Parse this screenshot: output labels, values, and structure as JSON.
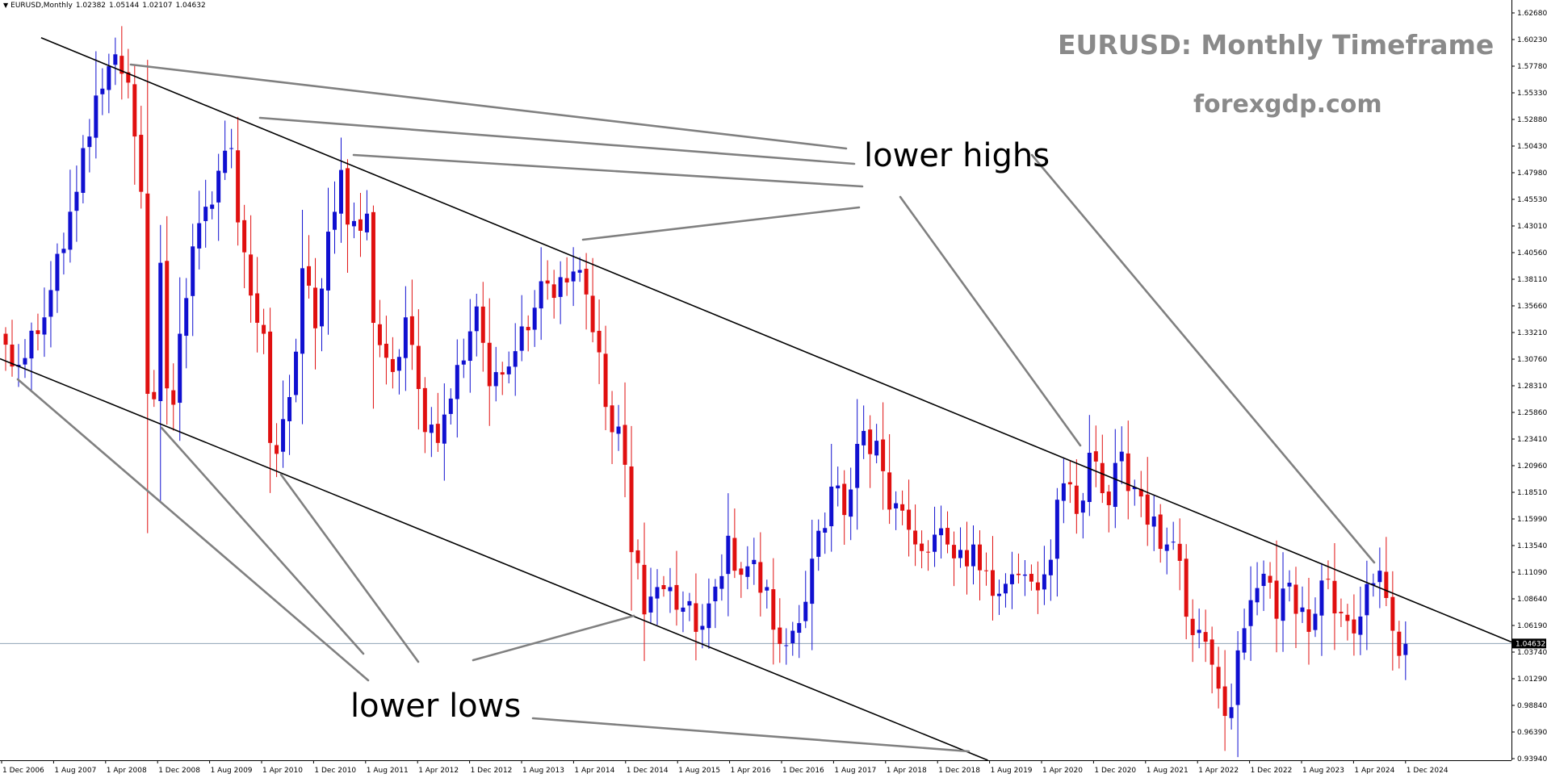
{
  "header": {
    "symbol": "EURUSD,Monthly",
    "open": "1.02382",
    "high": "1.05144",
    "low": "1.02107",
    "close": "1.04632"
  },
  "title": "EURUSD: Monthly Timeframe",
  "website": "forexgdp.com",
  "annotations": {
    "upper": "lower highs",
    "lower": "lower lows"
  },
  "colors": {
    "bull": "#1010d0",
    "bear": "#e01010",
    "trendline": "#000000",
    "pointer": "#808080",
    "price_line": "#8fa3b5"
  },
  "chart_data": {
    "type": "candlestick",
    "symbol": "EURUSD",
    "timeframe": "Monthly",
    "current_price": "1.04632",
    "y_ticks": [
      "1.62680",
      "1.60230",
      "1.57780",
      "1.55330",
      "1.52880",
      "1.50430",
      "1.47980",
      "1.45530",
      "1.43010",
      "1.40560",
      "1.38110",
      "1.35660",
      "1.33210",
      "1.30760",
      "1.28310",
      "1.25860",
      "1.23410",
      "1.20960",
      "1.18510",
      "1.15990",
      "1.13540",
      "1.11090",
      "1.08640",
      "1.06190",
      "1.03740",
      "1.01290",
      "0.98840",
      "0.96390",
      "0.93940"
    ],
    "x_ticks": [
      "1 Dec 2006",
      "1 Aug 2007",
      "1 Apr 2008",
      "1 Dec 2008",
      "1 Aug 2009",
      "1 Apr 2010",
      "1 Dec 2010",
      "1 Aug 2011",
      "1 Apr 2012",
      "1 Dec 2012",
      "1 Aug 2013",
      "1 Apr 2014",
      "1 Dec 2014",
      "1 Aug 2015",
      "1 Apr 2016",
      "1 Dec 2016",
      "1 Aug 2017",
      "1 Apr 2018",
      "1 Dec 2018",
      "1 Aug 2019",
      "1 Apr 2020",
      "1 Dec 2020",
      "1 Aug 2021",
      "1 Apr 2022",
      "1 Dec 2022",
      "1 Aug 2023",
      "1 Apr 2024",
      "1 Dec 2024"
    ],
    "start_month": "Dec 2006",
    "anchors": [
      [
        "Dec 2006",
        1.32
      ],
      [
        "Jan 2007",
        1.3
      ],
      [
        "Jun 2007",
        1.345
      ],
      [
        "Jul 2007",
        1.37
      ],
      [
        "Nov 2007",
        1.46
      ],
      [
        "Dec 2007",
        1.5
      ],
      [
        "Apr 2008",
        1.575
      ],
      [
        "Jul 2008",
        1.56
      ],
      [
        "Sep 2008",
        1.46
      ],
      [
        "Oct 2008",
        1.275
      ],
      [
        "Nov 2008",
        1.27
      ],
      [
        "Dec 2008",
        1.395
      ],
      [
        "Jan 2009",
        1.28
      ],
      [
        "Feb 2009",
        1.265
      ],
      [
        "Mar 2009",
        1.33
      ],
      [
        "May 2009",
        1.41
      ],
      [
        "Nov 2009",
        1.5
      ],
      [
        "Dec 2009",
        1.432
      ],
      [
        "Feb 2010",
        1.365
      ],
      [
        "Apr 2010",
        1.33
      ],
      [
        "May 2010",
        1.23
      ],
      [
        "Jun 2010",
        1.22
      ],
      [
        "Aug 2010",
        1.272
      ],
      [
        "Oct 2010",
        1.39
      ],
      [
        "Dec 2010",
        1.335
      ],
      [
        "Apr 2011",
        1.48
      ],
      [
        "May 2011",
        1.43
      ],
      [
        "Aug 2011",
        1.44
      ],
      [
        "Sep 2011",
        1.34
      ],
      [
        "Dec 2011",
        1.295
      ],
      [
        "Feb 2012",
        1.345
      ],
      [
        "May 2012",
        1.24
      ],
      [
        "Jul 2012",
        1.23
      ],
      [
        "Aug 2012",
        1.256
      ],
      [
        "Jan 2013",
        1.355
      ],
      [
        "Mar 2013",
        1.282
      ],
      [
        "Jun 2013",
        1.3
      ],
      [
        "Dec 2013",
        1.376
      ],
      [
        "Mar 2014",
        1.377
      ],
      [
        "Apr 2014",
        1.387
      ],
      [
        "Jun 2014",
        1.366
      ],
      [
        "Aug 2014",
        1.313
      ],
      [
        "Sep 2014",
        1.263
      ],
      [
        "Nov 2014",
        1.245
      ],
      [
        "Dec 2014",
        1.21
      ],
      [
        "Jan 2015",
        1.13
      ],
      [
        "Feb 2015",
        1.12
      ],
      [
        "Mar 2015",
        1.073
      ],
      [
        "May 2015",
        1.098
      ],
      [
        "Jul 2015",
        1.098
      ],
      [
        "Nov 2015",
        1.057
      ],
      [
        "Jan 2016",
        1.083
      ],
      [
        "Apr 2016",
        1.145
      ],
      [
        "May 2016",
        1.113
      ],
      [
        "Jul 2016",
        1.117
      ],
      [
        "Oct 2016",
        1.098
      ],
      [
        "Nov 2016",
        1.059
      ],
      [
        "Dec 2016",
        1.046
      ],
      [
        "Feb 2017",
        1.058
      ],
      [
        "Mar 2017",
        1.065
      ],
      [
        "May 2017",
        1.124
      ],
      [
        "Aug 2017",
        1.19
      ],
      [
        "Oct 2017",
        1.164
      ],
      [
        "Jan 2018",
        1.241
      ],
      [
        "Mar 2018",
        1.232
      ],
      [
        "May 2018",
        1.169
      ],
      [
        "Jul 2018",
        1.168
      ],
      [
        "Oct 2018",
        1.131
      ],
      [
        "Dec 2018",
        1.146
      ],
      [
        "Feb 2019",
        1.137
      ],
      [
        "May 2019",
        1.117
      ],
      [
        "Jun 2019",
        1.137
      ],
      [
        "Sep 2019",
        1.09
      ],
      [
        "Nov 2019",
        1.101
      ],
      [
        "Jan 2020",
        1.109
      ],
      [
        "Mar 2020",
        1.103
      ],
      [
        "Apr 2020",
        1.095
      ],
      [
        "Jun 2020",
        1.123
      ],
      [
        "Jul 2020",
        1.178
      ],
      [
        "Aug 2020",
        1.193
      ],
      [
        "Oct 2020",
        1.165
      ],
      [
        "Dec 2020",
        1.221
      ],
      [
        "Jan 2021",
        1.213
      ],
      [
        "Mar 2021",
        1.173
      ],
      [
        "May 2021",
        1.222
      ],
      [
        "Jun 2021",
        1.186
      ],
      [
        "Aug 2021",
        1.181
      ],
      [
        "Nov 2021",
        1.133
      ],
      [
        "Dec 2021",
        1.137
      ],
      [
        "Feb 2022",
        1.122
      ],
      [
        "Apr 2022",
        1.054
      ],
      [
        "Jun 2022",
        1.048
      ],
      [
        "Aug 2022",
        1.005
      ],
      [
        "Sep 2022",
        0.98
      ],
      [
        "Oct 2022",
        0.988
      ],
      [
        "Nov 2022",
        1.04
      ],
      [
        "Jan 2023",
        1.086
      ],
      [
        "Apr 2023",
        1.102
      ],
      [
        "May 2023",
        1.069
      ],
      [
        "Jul 2023",
        1.102
      ],
      [
        "Oct 2023",
        1.057
      ],
      [
        "Dec 2023",
        1.104
      ],
      [
        "Apr 2024",
        1.067
      ],
      [
        "Jun 2024",
        1.071
      ],
      [
        "Sep 2024",
        1.113
      ],
      [
        "Oct 2024",
        1.088
      ],
      [
        "Nov 2024",
        1.058
      ],
      [
        "Dec 2024",
        1.035
      ],
      [
        "Jan 2025",
        1.046
      ]
    ],
    "trendlines": [
      {
        "name": "upper",
        "from": [
          "Aug 2007",
          1.595
        ],
        "to": [
          "Dec 2024",
          1.09
        ]
      },
      {
        "name": "lower",
        "from": [
          "Dec 2006",
          1.305
        ],
        "to": [
          "Aug 2019",
          0.94
        ]
      }
    ]
  }
}
